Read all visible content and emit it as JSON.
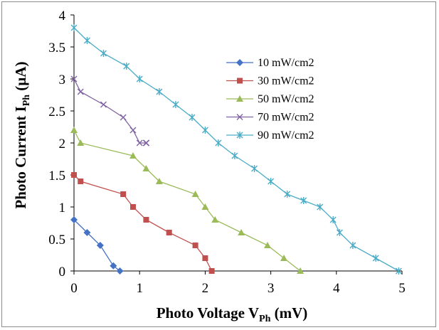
{
  "chart_data": {
    "type": "line",
    "xlabel": {
      "main": "Photo Voltage V",
      "sub": "Ph",
      "unit": " (mV)"
    },
    "ylabel": {
      "main": "Photo Current I",
      "sub": "Ph",
      "unit": " (µA)"
    },
    "xlim": [
      0,
      5
    ],
    "ylim": [
      0,
      4
    ],
    "xticks": [
      0,
      1,
      2,
      3,
      4,
      5
    ],
    "yticks": [
      0,
      0.5,
      1,
      1.5,
      2,
      2.5,
      3,
      3.5,
      4
    ],
    "xtick_labels": [
      "0",
      "1",
      "2",
      "3",
      "4",
      "5"
    ],
    "ytick_labels": [
      "0",
      "0.5",
      "1",
      "1.5",
      "2",
      "2.5",
      "3",
      "3.5",
      "4"
    ],
    "grid": false,
    "legend_position": "right",
    "series": [
      {
        "name": "10 mW/cm2",
        "color": "#4472C4",
        "marker": "diamond",
        "x": [
          0,
          0.2,
          0.4,
          0.6,
          0.7
        ],
        "y": [
          0.8,
          0.6,
          0.4,
          0.08,
          0
        ]
      },
      {
        "name": "30 mW/cm2",
        "color": "#C0504D",
        "marker": "square",
        "x": [
          0,
          0.1,
          0.75,
          0.9,
          1.1,
          1.45,
          1.85,
          2.0,
          2.1
        ],
        "y": [
          1.5,
          1.4,
          1.2,
          1.0,
          0.8,
          0.6,
          0.4,
          0.2,
          0
        ]
      },
      {
        "name": "50 mW/cm2",
        "color": "#9BBB59",
        "marker": "triangle",
        "x": [
          0,
          0.1,
          0.9,
          1.1,
          1.3,
          1.85,
          2.0,
          2.15,
          2.55,
          2.95,
          3.2,
          3.45
        ],
        "y": [
          2.2,
          2.0,
          1.8,
          1.6,
          1.4,
          1.2,
          1.0,
          0.8,
          0.6,
          0.4,
          0.2,
          0
        ]
      },
      {
        "name": "70 mW/cm2",
        "color": "#8064A2",
        "marker": "x",
        "x": [
          0,
          0.1,
          0.45,
          0.75,
          0.9,
          1.0,
          1.1,
          1.1,
          1.1,
          1.1,
          1.1
        ],
        "y": [
          3.0,
          2.8,
          2.6,
          2.4,
          2.2,
          2.0,
          2.0,
          2.0,
          2.0,
          2.0,
          2.0
        ]
      },
      {
        "name": "90 mW/cm2",
        "color": "#4BACC6",
        "marker": "star",
        "x": [
          0,
          0.2,
          0.45,
          0.8,
          1.0,
          1.3,
          1.55,
          1.8,
          2.0,
          2.2,
          2.45,
          2.75,
          3.0,
          3.25,
          3.5,
          3.75,
          3.95,
          4.05,
          4.25,
          4.6,
          4.95
        ],
        "y": [
          3.8,
          3.6,
          3.4,
          3.2,
          3.0,
          2.8,
          2.6,
          2.4,
          2.2,
          2.0,
          1.8,
          1.6,
          1.4,
          1.2,
          1.1,
          1.0,
          0.8,
          0.6,
          0.4,
          0.2,
          0
        ]
      }
    ]
  }
}
